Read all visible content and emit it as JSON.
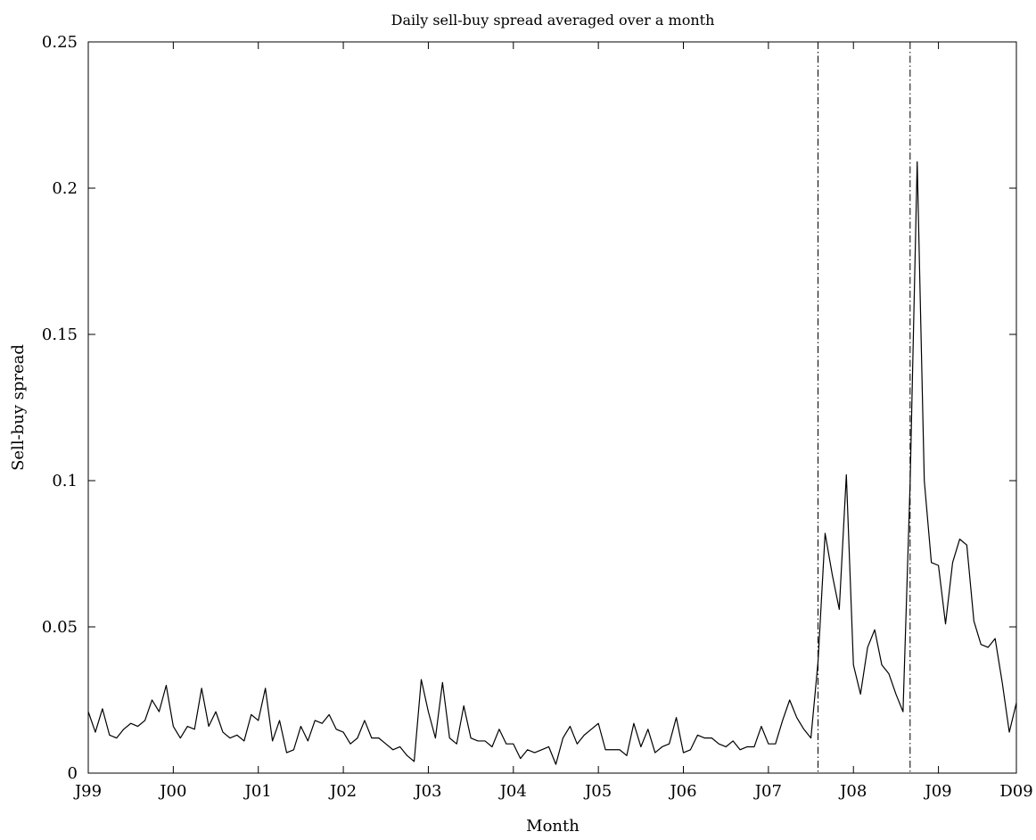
{
  "chart_data": {
    "type": "line",
    "title": "Daily sell-buy spread averaged over a month",
    "xlabel": "Month",
    "ylabel": "Sell-buy spread",
    "ylim": [
      0,
      0.25
    ],
    "xlim": [
      "1999-01",
      "2009-12"
    ],
    "grid": false,
    "legend": "none",
    "line_color": "#000000",
    "x_tick_labels": [
      "J99",
      "J00",
      "J01",
      "J02",
      "J03",
      "J04",
      "J05",
      "J06",
      "J07",
      "J08",
      "J09",
      "D09"
    ],
    "x_tick_months": [
      "1999-01",
      "2000-01",
      "2001-01",
      "2002-01",
      "2003-01",
      "2004-01",
      "2005-01",
      "2006-01",
      "2007-01",
      "2008-01",
      "2009-01",
      "2009-12"
    ],
    "y_tick_labels": [
      "0",
      "0.05",
      "0.1",
      "0.15",
      "0.2",
      "0.25"
    ],
    "y_tick_values": [
      0,
      0.05,
      0.1,
      0.15,
      0.2,
      0.25
    ],
    "vertical_markers": [
      "2007-08",
      "2008-09"
    ],
    "series": [
      {
        "values": [
          0.021,
          0.014,
          0.022,
          0.013,
          0.012,
          0.015,
          0.017,
          0.016,
          0.018,
          0.025,
          0.021,
          0.03,
          0.016,
          0.012,
          0.016,
          0.015,
          0.029,
          0.016,
          0.021,
          0.014,
          0.012,
          0.013,
          0.011,
          0.02,
          0.018,
          0.029,
          0.011,
          0.018,
          0.007,
          0.008,
          0.016,
          0.011,
          0.018,
          0.017,
          0.02,
          0.015,
          0.014,
          0.01,
          0.012,
          0.018,
          0.012,
          0.012,
          0.01,
          0.008,
          0.009,
          0.006,
          0.004,
          0.032,
          0.021,
          0.012,
          0.031,
          0.012,
          0.01,
          0.023,
          0.012,
          0.011,
          0.011,
          0.009,
          0.015,
          0.01,
          0.01,
          0.005,
          0.008,
          0.007,
          0.008,
          0.009,
          0.003,
          0.012,
          0.016,
          0.01,
          0.013,
          0.015,
          0.017,
          0.008,
          0.008,
          0.008,
          0.006,
          0.017,
          0.009,
          0.015,
          0.007,
          0.009,
          0.01,
          0.019,
          0.007,
          0.008,
          0.013,
          0.012,
          0.012,
          0.01,
          0.009,
          0.011,
          0.008,
          0.009,
          0.009,
          0.016,
          0.01,
          0.01,
          0.018,
          0.025,
          0.019,
          0.015,
          0.012,
          0.038,
          0.082,
          0.068,
          0.056,
          0.102,
          0.037,
          0.027,
          0.043,
          0.049,
          0.037,
          0.034,
          0.027,
          0.021,
          0.099,
          0.209,
          0.1,
          0.072,
          0.071,
          0.051,
          0.072,
          0.08,
          0.078,
          0.052,
          0.044,
          0.043,
          0.046,
          0.031,
          0.014,
          0.024
        ]
      }
    ]
  }
}
